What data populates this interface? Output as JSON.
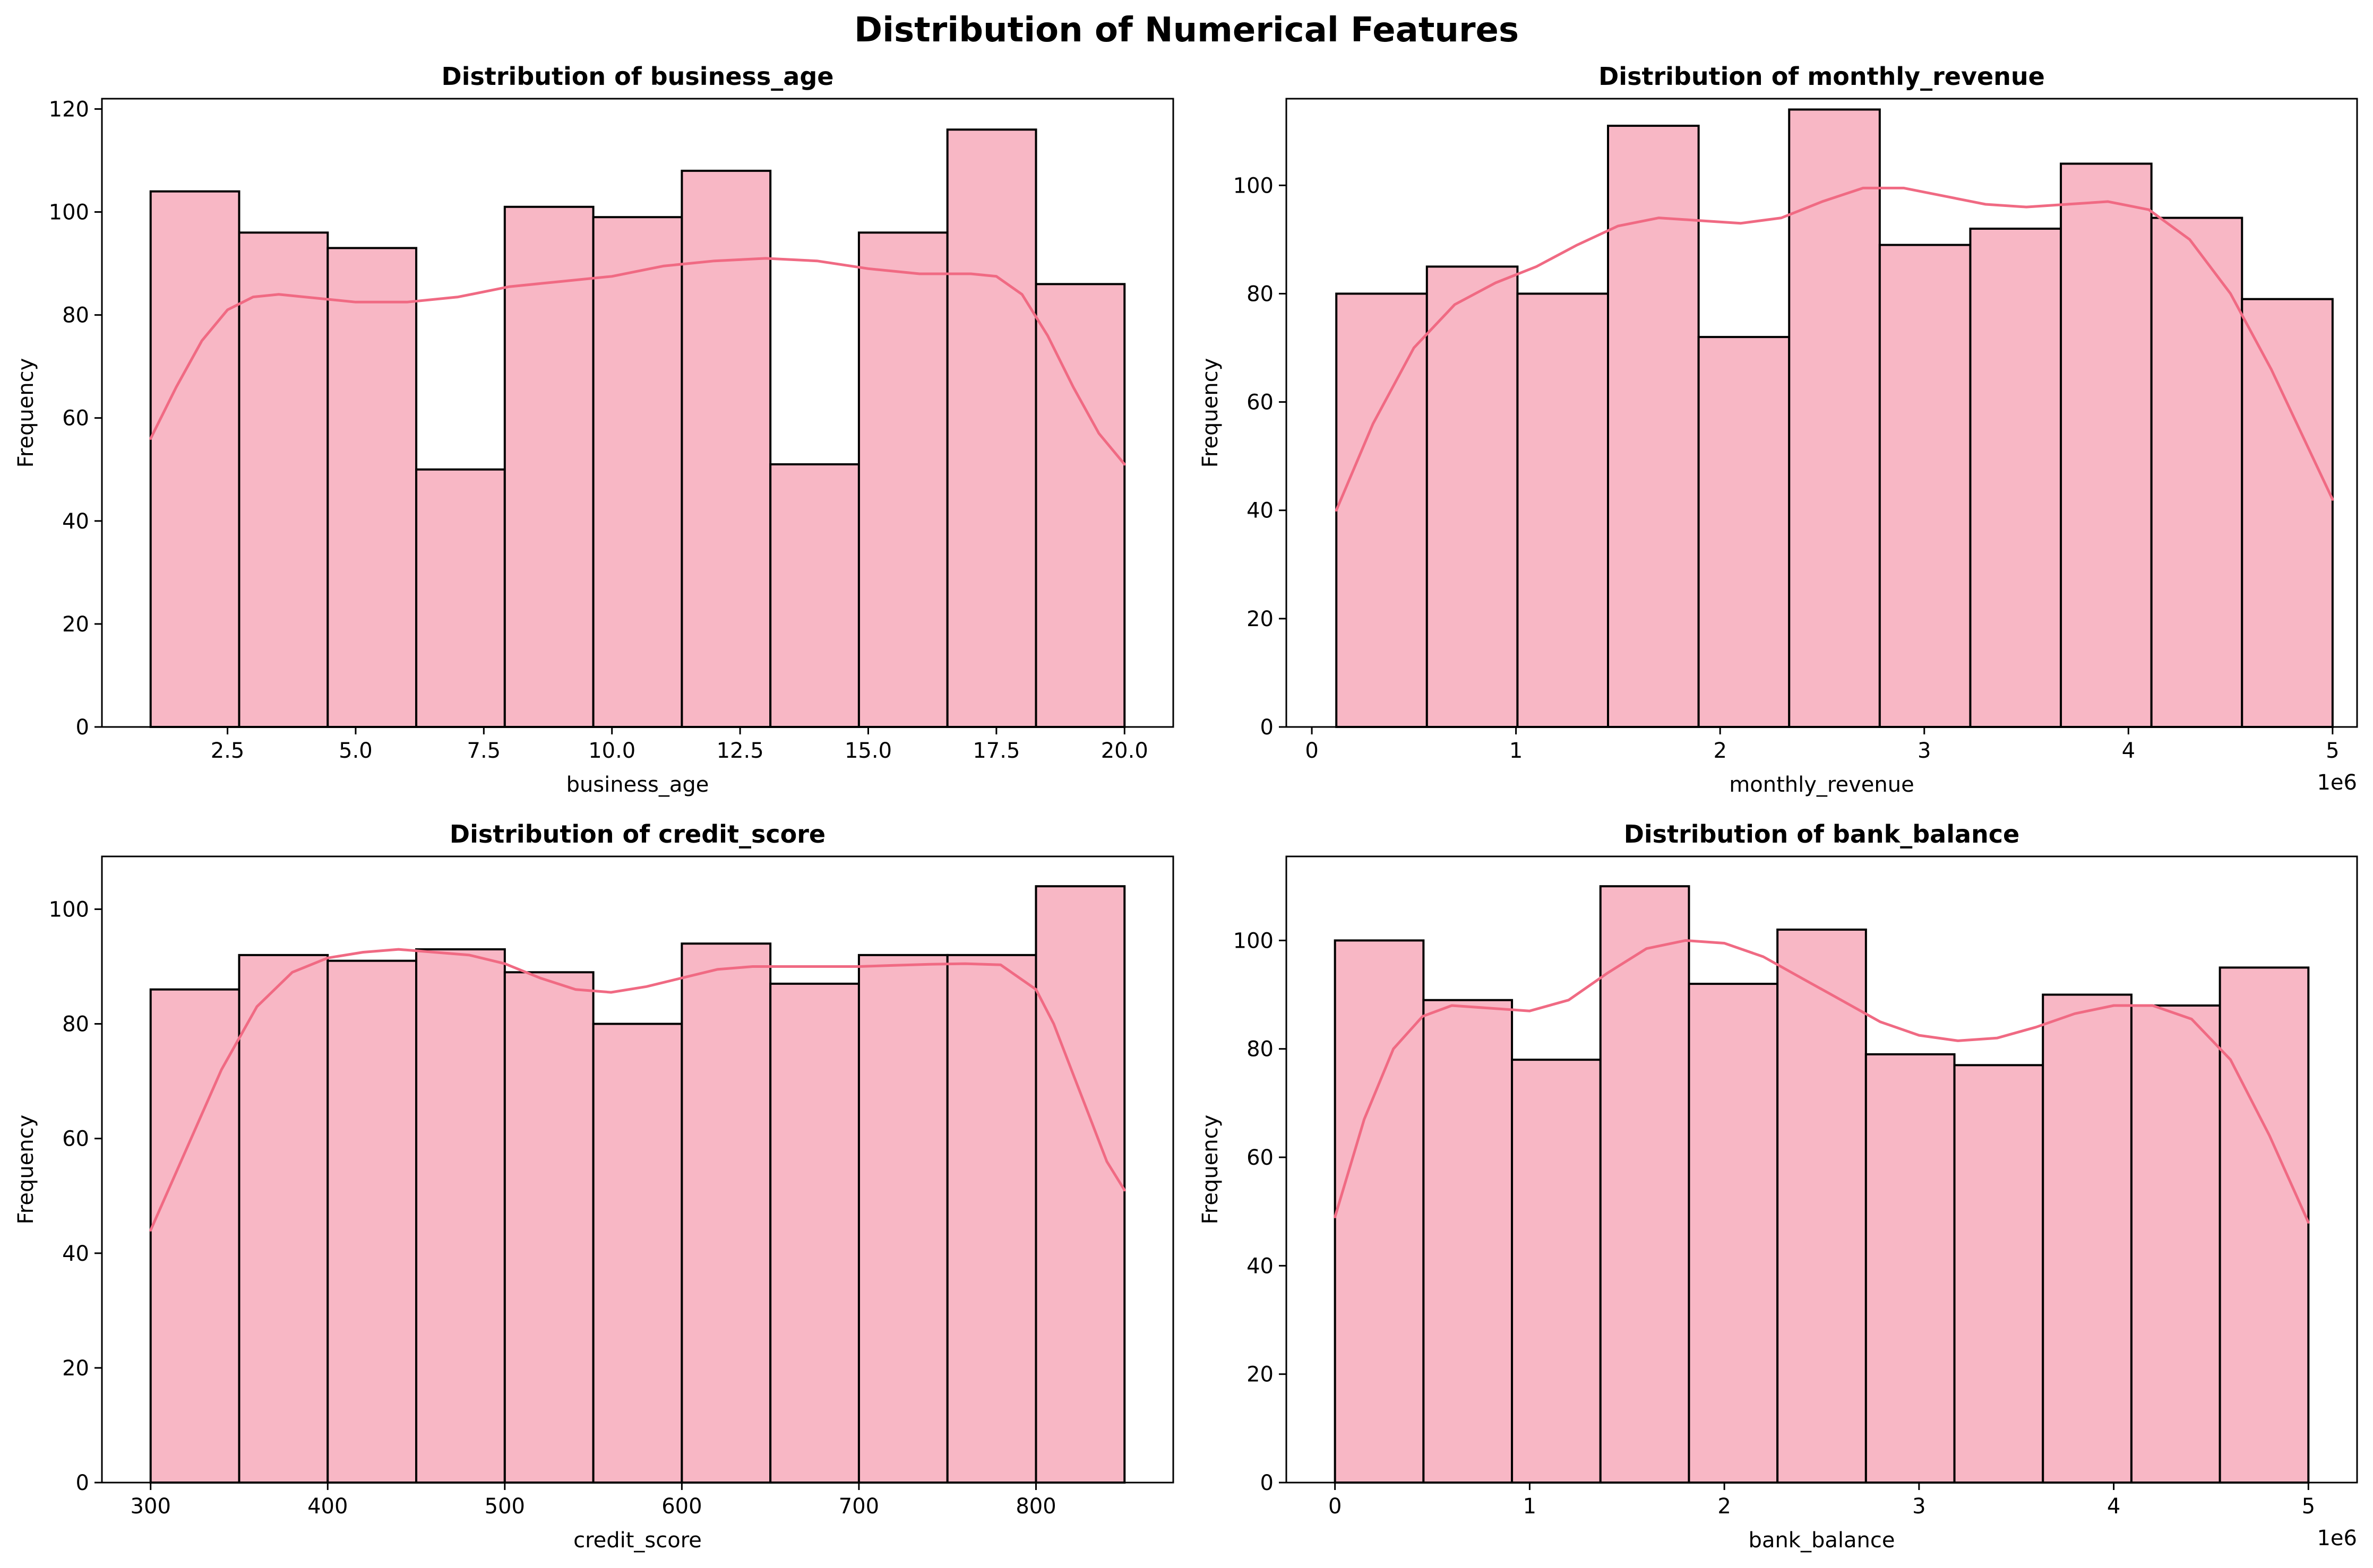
{
  "suptitle": "Distribution of Numerical Features",
  "colors": {
    "bar_fill": "#f8b7c5",
    "bar_edge": "#000000",
    "kde_line": "#f06a83"
  },
  "chart_data": [
    {
      "type": "bar",
      "title": "Distribution of business_age",
      "xlabel": "business_age",
      "ylabel": "Frequency",
      "xlim": [
        0.05,
        20.95
      ],
      "ylim": [
        0,
        122
      ],
      "xticks": [
        2.5,
        5.0,
        7.5,
        10.0,
        12.5,
        15.0,
        17.5,
        20.0
      ],
      "xtick_labels": [
        "2.5",
        "5.0",
        "7.5",
        "10.0",
        "12.5",
        "15.0",
        "17.5",
        "20.0"
      ],
      "yticks": [
        0,
        20,
        40,
        60,
        80,
        100,
        120
      ],
      "ytick_labels": [
        "0",
        "20",
        "40",
        "60",
        "80",
        "100",
        "120"
      ],
      "x_offset_text": "",
      "bin_edges": [
        1,
        2.727,
        4.455,
        6.182,
        7.909,
        9.636,
        11.364,
        13.091,
        14.818,
        16.545,
        18.273,
        20
      ],
      "values": [
        104,
        96,
        93,
        50,
        101,
        99,
        108,
        51,
        96,
        116,
        86
      ],
      "kde": {
        "x": [
          1,
          1.5,
          2,
          2.5,
          3,
          3.5,
          4,
          5,
          6,
          7,
          8,
          9,
          10,
          11,
          12,
          13,
          14,
          15,
          16,
          17,
          17.5,
          18,
          18.5,
          19,
          19.5,
          20
        ],
        "y": [
          56,
          66,
          75,
          81,
          83.5,
          84,
          83.5,
          82.5,
          82.5,
          83.5,
          85.5,
          86.5,
          87.5,
          89.5,
          90.5,
          91,
          90.5,
          89,
          88,
          88,
          87.5,
          84,
          76,
          66,
          57,
          51
        ]
      }
    },
    {
      "type": "bar",
      "title": "Distribution of monthly_revenue",
      "xlabel": "monthly_revenue",
      "ylabel": "Frequency",
      "xlim": [
        -125000,
        5120000
      ],
      "ylim": [
        0,
        116
      ],
      "xticks": [
        0,
        1000000,
        2000000,
        3000000,
        4000000,
        5000000
      ],
      "xtick_labels": [
        "0",
        "1",
        "2",
        "3",
        "4",
        "5"
      ],
      "yticks": [
        0,
        20,
        40,
        60,
        80,
        100
      ],
      "ytick_labels": [
        "0",
        "20",
        "40",
        "60",
        "80",
        "100"
      ],
      "x_offset_text": "1e6",
      "bin_edges": [
        120000,
        563636,
        1007273,
        1450909,
        1894545,
        2338182,
        2781818,
        3225455,
        3669091,
        4112727,
        4556364,
        5000000
      ],
      "values": [
        80,
        85,
        80,
        111,
        72,
        114,
        89,
        92,
        104,
        94,
        79
      ],
      "kde": {
        "x": [
          120000,
          300000,
          500000,
          700000,
          900000,
          1100000,
          1300000,
          1500000,
          1700000,
          1900000,
          2100000,
          2300000,
          2500000,
          2700000,
          2900000,
          3100000,
          3300000,
          3500000,
          3700000,
          3900000,
          4100000,
          4300000,
          4500000,
          4700000,
          4900000,
          5000000
        ],
        "y": [
          40,
          56,
          70,
          78,
          82,
          85,
          89,
          92.5,
          94,
          93.5,
          93,
          94,
          97,
          99.5,
          99.5,
          98,
          96.5,
          96,
          96.5,
          97,
          95.5,
          90,
          80,
          66,
          50,
          42
        ]
      }
    },
    {
      "type": "bar",
      "title": "Distribution of credit_score",
      "xlabel": "credit_score",
      "ylabel": "Frequency",
      "xlim": [
        272.5,
        877.5
      ],
      "ylim": [
        0,
        109.2
      ],
      "xticks": [
        300,
        400,
        500,
        600,
        700,
        800
      ],
      "xtick_labels": [
        "300",
        "400",
        "500",
        "600",
        "700",
        "800"
      ],
      "yticks": [
        0,
        20,
        40,
        60,
        80,
        100
      ],
      "ytick_labels": [
        "0",
        "20",
        "40",
        "60",
        "80",
        "100"
      ],
      "x_offset_text": "",
      "bin_edges": [
        300,
        350,
        400,
        450,
        500,
        550,
        600,
        650,
        700,
        750,
        800,
        850
      ],
      "values": [
        86,
        92,
        91,
        93,
        89,
        80,
        94,
        87,
        92,
        92,
        104
      ],
      "kde": {
        "x": [
          300,
          320,
          340,
          360,
          380,
          400,
          420,
          440,
          460,
          480,
          500,
          520,
          540,
          560,
          580,
          600,
          620,
          640,
          660,
          680,
          700,
          720,
          740,
          760,
          780,
          800,
          810,
          820,
          830,
          840,
          850
        ],
        "y": [
          44,
          58,
          72,
          83,
          89,
          91.5,
          92.5,
          93,
          92.5,
          92,
          90.5,
          88,
          86,
          85.5,
          86.5,
          88,
          89.5,
          90,
          90,
          90,
          90,
          90.2,
          90.4,
          90.5,
          90.3,
          86,
          80,
          72,
          64,
          56,
          51
        ]
      }
    },
    {
      "type": "bar",
      "title": "Distribution of bank_balance",
      "xlabel": "bank_balance",
      "ylabel": "Frequency",
      "xlim": [
        -250000,
        5250000
      ],
      "ylim": [
        0,
        115.5
      ],
      "xticks": [
        0,
        1000000,
        2000000,
        3000000,
        4000000,
        5000000
      ],
      "xtick_labels": [
        "0",
        "1",
        "2",
        "3",
        "4",
        "5"
      ],
      "yticks": [
        0,
        20,
        40,
        60,
        80,
        100
      ],
      "ytick_labels": [
        "0",
        "20",
        "40",
        "60",
        "80",
        "100"
      ],
      "x_offset_text": "1e6",
      "bin_edges": [
        0,
        454545,
        909091,
        1363636,
        1818182,
        2272727,
        2727273,
        3181818,
        3636364,
        4090909,
        4545455,
        5000000
      ],
      "values": [
        100,
        89,
        78,
        110,
        92,
        102,
        79,
        77,
        90,
        88,
        95
      ],
      "kde": {
        "x": [
          0,
          150000,
          300000,
          450000,
          600000,
          800000,
          1000000,
          1200000,
          1400000,
          1600000,
          1800000,
          2000000,
          2200000,
          2400000,
          2600000,
          2800000,
          3000000,
          3200000,
          3400000,
          3600000,
          3800000,
          4000000,
          4200000,
          4400000,
          4600000,
          4800000,
          5000000
        ],
        "y": [
          49,
          67,
          80,
          86,
          88,
          87.5,
          87,
          89,
          94,
          98.5,
          100,
          99.5,
          97,
          93,
          89,
          85,
          82.5,
          81.5,
          82,
          84,
          86.5,
          88,
          88,
          85.5,
          78,
          64,
          48
        ]
      }
    }
  ]
}
